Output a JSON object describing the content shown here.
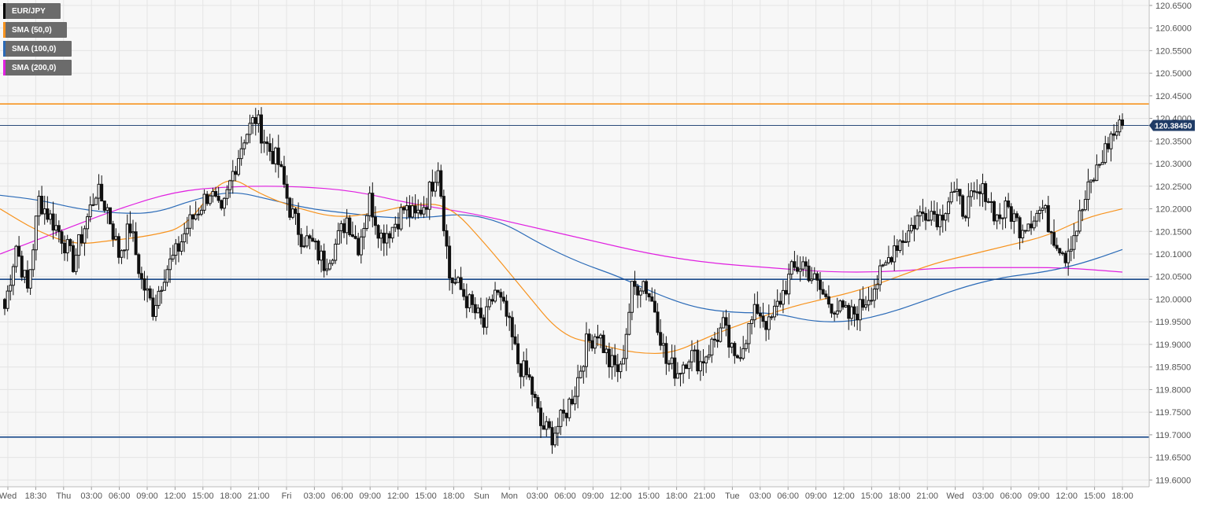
{
  "chart_data": {
    "type": "candlestick",
    "symbol": "EUR/JPY",
    "legend": [
      {
        "label": "EUR/JPY",
        "color": "#000000"
      },
      {
        "label": "SMA (50,0)",
        "color": "#f7931e"
      },
      {
        "label": "SMA (100,0)",
        "color": "#2a6ab7"
      },
      {
        "label": "SMA (200,0)",
        "color": "#e020e0"
      }
    ],
    "y_ticks": [
      "120.6500",
      "120.6000",
      "120.5500",
      "120.5000",
      "120.4500",
      "120.4000",
      "120.3500",
      "120.3000",
      "120.2500",
      "120.2000",
      "120.1500",
      "120.1000",
      "120.0500",
      "120.0000",
      "119.9500",
      "119.9000",
      "119.8500",
      "119.8000",
      "119.7500",
      "119.7000",
      "119.6500",
      "119.6000"
    ],
    "ylim": [
      119.585,
      120.662
    ],
    "x_ticks": [
      "Wed",
      "18:30",
      "Thu",
      "03:00",
      "06:00",
      "09:00",
      "12:00",
      "15:00",
      "18:00",
      "21:00",
      "Fri",
      "03:00",
      "06:00",
      "09:00",
      "12:00",
      "15:00",
      "18:00",
      "Sun",
      "Mon",
      "03:00",
      "06:00",
      "09:00",
      "12:00",
      "15:00",
      "18:00",
      "21:00",
      "Tue",
      "03:00",
      "06:00",
      "09:00",
      "12:00",
      "15:00",
      "18:00",
      "21:00",
      "Wed",
      "03:00",
      "06:00",
      "09:00",
      "12:00",
      "15:00",
      "18:00"
    ],
    "current_price": "120.38450",
    "levels": [
      {
        "value": 120.432,
        "color": "#f7931e"
      },
      {
        "value": 120.3845,
        "color": "#2a4a7a"
      },
      {
        "value": 120.044,
        "color": "#1a4a8a"
      },
      {
        "value": 119.695,
        "color": "#1a4a8a"
      }
    ],
    "ohlc_anchors": [
      119.98,
      120.12,
      120.02,
      120.22,
      120.18,
      120.14,
      120.08,
      120.16,
      120.24,
      120.2,
      120.1,
      120.16,
      120.04,
      119.98,
      120.06,
      120.1,
      120.16,
      120.2,
      120.24,
      120.18,
      120.28,
      120.36,
      120.4,
      120.34,
      120.3,
      120.2,
      120.14,
      120.12,
      120.08,
      120.12,
      120.18,
      120.12,
      120.22,
      120.14,
      120.16,
      120.2,
      120.18,
      120.22,
      120.3,
      120.05,
      120.02,
      119.98,
      119.94,
      120.02,
      119.96,
      119.86,
      119.82,
      119.72,
      119.7,
      119.74,
      119.8,
      119.9,
      119.93,
      119.86,
      119.84,
      120.02,
      120.04,
      119.98,
      119.86,
      119.84,
      119.88,
      119.86,
      119.9,
      119.94,
      119.86,
      119.92,
      119.98,
      119.94,
      120.0,
      120.06,
      120.08,
      120.04,
      120.0,
      119.98,
      119.96,
      119.98,
      120.02,
      120.06,
      120.12,
      120.14,
      120.18,
      120.2,
      120.18,
      120.24,
      120.2,
      120.22,
      120.24,
      120.18,
      120.2,
      120.16,
      120.18,
      120.2,
      120.14,
      120.1,
      120.16,
      120.24,
      120.3,
      120.36,
      120.3845
    ],
    "sma50": [
      120.2,
      120.15,
      120.12,
      120.13,
      120.14,
      120.16,
      120.28,
      120.23,
      120.2,
      120.18,
      120.19,
      120.21,
      120.21,
      120.12,
      120.02,
      119.92,
      119.9,
      119.88,
      119.88,
      119.92,
      119.95,
      119.98,
      120.0,
      120.02,
      120.05,
      120.08,
      120.1,
      120.12,
      120.14,
      120.18,
      120.2
    ],
    "sma100": [
      120.23,
      120.22,
      120.2,
      120.19,
      120.19,
      120.22,
      120.24,
      120.22,
      120.2,
      120.19,
      120.18,
      120.18,
      120.19,
      120.17,
      120.12,
      120.08,
      120.05,
      120.01,
      119.98,
      119.97,
      119.97,
      119.95,
      119.95,
      119.97,
      120.0,
      120.03,
      120.05,
      120.06,
      120.08,
      120.11
    ],
    "sma200": [
      120.1,
      120.15,
      120.2,
      120.24,
      120.25,
      120.25,
      120.24,
      120.21,
      120.19,
      120.16,
      120.13,
      120.1,
      120.08,
      120.07,
      120.06,
      120.06,
      120.07,
      120.07,
      120.07,
      120.06
    ]
  }
}
